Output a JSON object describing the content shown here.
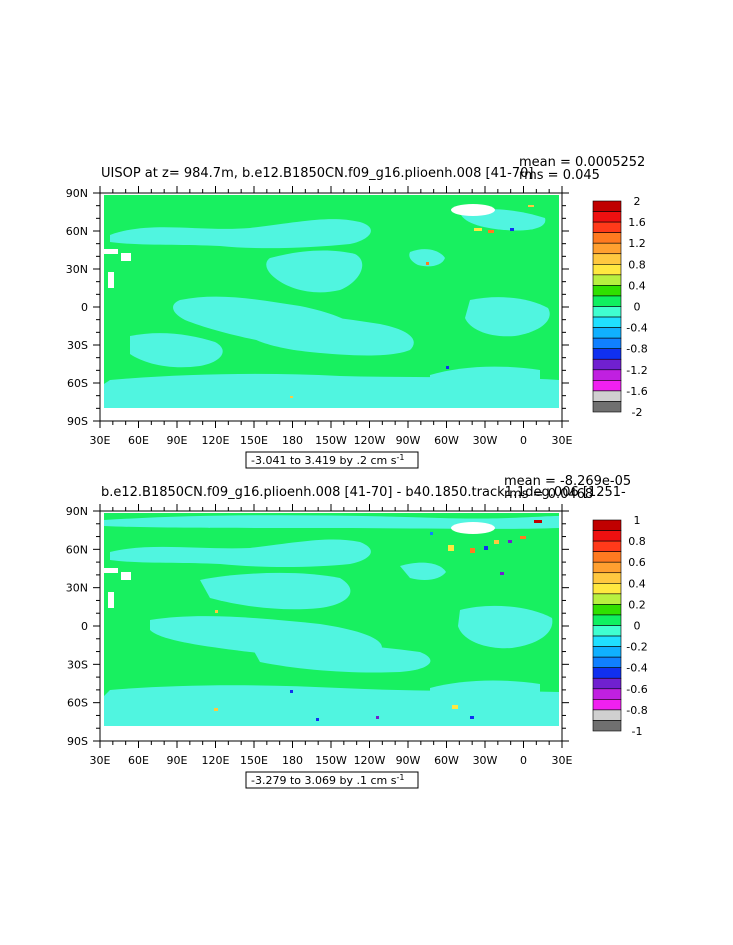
{
  "panels": [
    {
      "title": "UISOP at z= 984.7m, b.e12.B1850CN.f09_g16.plioenh.008 [41-70]",
      "mean": "mean = 0.0005252",
      "rms": "rms = 0.045",
      "range": "-3.041 to 3.419 by .2 cm s",
      "range_sup": "-1",
      "colorbar": {
        "labels": [
          "2",
          "1.6",
          "1.2",
          "0.8",
          "0.4",
          "0",
          "-0.4",
          "-0.8",
          "-1.2",
          "-1.6",
          "-2"
        ],
        "colors": [
          "#c00000",
          "#ee1010",
          "#ff3a1a",
          "#ff7a20",
          "#ffa030",
          "#ffc840",
          "#ffe840",
          "#b8f040",
          "#30e000",
          "#10f060",
          "#40ffd0",
          "#20e0ff",
          "#10b0ff",
          "#1080ff",
          "#1030f0",
          "#7020d0",
          "#c020e0",
          "#f020f0",
          "#d0d0d0",
          "#707070"
        ]
      }
    },
    {
      "title": "b.e12.B1850CN.f09_g16.plioenh.008 [41-70] - b40.1850.track1.1deg.006 [1251-",
      "mean": "mean = -8.269e-05",
      "rms": "rms = 0.0468",
      "range": "-3.279 to 3.069 by .1 cm s",
      "range_sup": "-1",
      "colorbar": {
        "labels": [
          "1",
          "0.8",
          "0.6",
          "0.4",
          "0.2",
          "0",
          "-0.2",
          "-0.4",
          "-0.6",
          "-0.8",
          "-1"
        ],
        "colors": [
          "#c00000",
          "#ee1010",
          "#ff3a1a",
          "#ff7a20",
          "#ffa030",
          "#ffc840",
          "#ffe840",
          "#b8f040",
          "#30e000",
          "#10f060",
          "#40ffd0",
          "#20e0ff",
          "#10b0ff",
          "#1080ff",
          "#1030f0",
          "#7020d0",
          "#c020e0",
          "#f020f0",
          "#d0d0d0",
          "#707070"
        ]
      }
    }
  ],
  "chart_data": [
    {
      "type": "heatmap",
      "title": "UISOP at z= 984.7m, b.e12.B1850CN.f09_g16.plioenh.008 [41-70]",
      "x_ticks": [
        "30E",
        "60E",
        "90E",
        "120E",
        "150E",
        "180",
        "150W",
        "120W",
        "90W",
        "60W",
        "30W",
        "0",
        "30E"
      ],
      "y_ticks": [
        "90N",
        "60N",
        "30N",
        "0",
        "30S",
        "60S",
        "90S"
      ],
      "xlim": [
        30,
        390
      ],
      "ylim": [
        -90,
        90
      ],
      "contour_levels": [
        -2,
        -1.8,
        -1.6,
        -1.4,
        -1.2,
        -1,
        -0.8,
        -0.6,
        -0.4,
        -0.2,
        0,
        0.2,
        0.4,
        0.6,
        0.8,
        1,
        1.2,
        1.4,
        1.6,
        1.8,
        2
      ],
      "data_range": "-3.041 to 3.419 by .2 cm s-1",
      "mean": 0.0005252,
      "rms": 0.045
    },
    {
      "type": "heatmap",
      "title": "b.e12.B1850CN.f09_g16.plioenh.008 [41-70] - b40.1850.track1.1deg.006 [1251-",
      "x_ticks": [
        "30E",
        "60E",
        "90E",
        "120E",
        "150E",
        "180",
        "150W",
        "120W",
        "90W",
        "60W",
        "30W",
        "0",
        "30E"
      ],
      "y_ticks": [
        "90N",
        "60N",
        "30N",
        "0",
        "30S",
        "60S",
        "90S"
      ],
      "xlim": [
        30,
        390
      ],
      "ylim": [
        -90,
        90
      ],
      "contour_levels": [
        -1,
        -0.9,
        -0.8,
        -0.7,
        -0.6,
        -0.5,
        -0.4,
        -0.3,
        -0.2,
        -0.1,
        0,
        0.1,
        0.2,
        0.3,
        0.4,
        0.5,
        0.6,
        0.7,
        0.8,
        0.9,
        1
      ],
      "data_range": "-3.279 to 3.069 by .1 cm s-1",
      "mean": -8.269e-05,
      "rms": 0.0468
    }
  ]
}
